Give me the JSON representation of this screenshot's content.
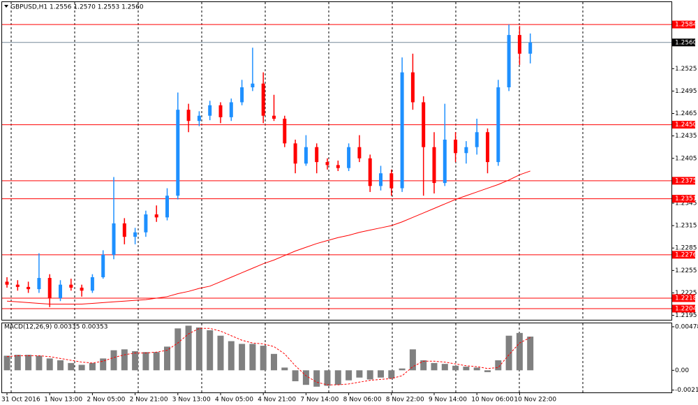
{
  "chart_data": [
    {
      "type": "candlestick",
      "title": "GBPUSD,H1  1.2556 1.2570 1.2553 1.2560",
      "categories": [
        "31 Oct 2016",
        null,
        null,
        null,
        "1 Nov 13:00",
        null,
        null,
        null,
        "2 Nov 05:00",
        null,
        null,
        null,
        "2 Nov 21:00",
        null,
        null,
        null,
        "3 Nov 13:00",
        null,
        null,
        null,
        "4 Nov 05:00",
        null,
        null,
        null,
        "4 Nov 21:00",
        null,
        null,
        null,
        "7 Nov 14:00",
        null,
        null,
        null,
        "8 Nov 06:00",
        null,
        null,
        null,
        "8 Nov 22:00",
        null,
        null,
        null,
        "9 Nov 14:00",
        null,
        null,
        null,
        "10 Nov 06:00",
        null,
        null,
        null,
        "10 Nov 22:00",
        null
      ],
      "open": [
        1.224,
        1.2236,
        1.2233,
        1.223,
        1.2245,
        1.2218,
        1.2236,
        1.2232,
        1.2228,
        1.2246,
        1.2276,
        1.2318,
        1.23,
        1.2306,
        1.233,
        1.2326,
        1.2355,
        1.247,
        1.2455,
        1.2462,
        1.2476,
        1.246,
        1.248,
        1.25,
        1.2505,
        1.2462,
        1.2458,
        1.2425,
        1.2398,
        1.242,
        1.24,
        1.2396,
        1.2392,
        1.242,
        1.2405,
        1.2368,
        1.2385,
        1.2365,
        1.252,
        1.248,
        1.242,
        1.2372,
        1.243,
        1.2412,
        1.242,
        1.244,
        1.24,
        1.25,
        1.257,
        1.2545
      ],
      "high": [
        1.2246,
        1.2242,
        1.224,
        1.2278,
        1.225,
        1.2242,
        1.2244,
        1.2236,
        1.225,
        1.2282,
        1.238,
        1.2325,
        1.2312,
        1.2335,
        1.2342,
        1.2365,
        1.2493,
        1.2478,
        1.2468,
        1.2482,
        1.248,
        1.2485,
        1.251,
        1.2553,
        1.252,
        1.249,
        1.2462,
        1.243,
        1.2436,
        1.2425,
        1.2405,
        1.2402,
        1.2425,
        1.2436,
        1.241,
        1.2395,
        1.239,
        1.254,
        1.2545,
        1.2488,
        1.244,
        1.2478,
        1.244,
        1.2428,
        1.2458,
        1.2445,
        1.251,
        1.2584,
        1.2582,
        1.2572
      ],
      "low": [
        1.2232,
        1.2228,
        1.2225,
        1.2225,
        1.2206,
        1.2214,
        1.2228,
        1.222,
        1.2225,
        1.2244,
        1.227,
        1.229,
        1.229,
        1.23,
        1.232,
        1.2322,
        1.235,
        1.244,
        1.2448,
        1.2456,
        1.2452,
        1.2455,
        1.2476,
        1.2495,
        1.2452,
        1.2455,
        1.242,
        1.2385,
        1.2395,
        1.2385,
        1.239,
        1.2388,
        1.2388,
        1.24,
        1.236,
        1.2362,
        1.2355,
        1.236,
        1.247,
        1.2355,
        1.2358,
        1.2368,
        1.24,
        1.2398,
        1.241,
        1.2385,
        1.2395,
        1.2495,
        1.253,
        1.2532
      ],
      "close": [
        1.2236,
        1.2233,
        1.223,
        1.2245,
        1.2218,
        1.2236,
        1.2232,
        1.2228,
        1.2246,
        1.2276,
        1.2318,
        1.23,
        1.2306,
        1.233,
        1.2326,
        1.2355,
        1.247,
        1.2455,
        1.2462,
        1.2476,
        1.246,
        1.248,
        1.25,
        1.2505,
        1.2462,
        1.2458,
        1.2425,
        1.2398,
        1.242,
        1.24,
        1.2396,
        1.2392,
        1.242,
        1.2405,
        1.2368,
        1.2385,
        1.2365,
        1.252,
        1.248,
        1.242,
        1.2372,
        1.243,
        1.2412,
        1.242,
        1.244,
        1.24,
        1.25,
        1.257,
        1.2545,
        1.256
      ],
      "up_color": "#1e90ff",
      "down_color": "#ff0000",
      "ma": {
        "color": "#ff0000",
        "values": [
          1.2214,
          1.2213,
          1.2212,
          1.2211,
          1.221,
          1.221,
          1.221,
          1.221,
          1.2211,
          1.2212,
          1.2213,
          1.2214,
          1.2215,
          1.2216,
          1.2218,
          1.222,
          1.2224,
          1.2227,
          1.2231,
          1.2234,
          1.224,
          1.2246,
          1.2252,
          1.2258,
          1.2264,
          1.2269,
          1.2275,
          1.2281,
          1.2286,
          1.2291,
          1.2295,
          1.2299,
          1.2302,
          1.2306,
          1.2309,
          1.2312,
          1.2315,
          1.232,
          1.2326,
          1.2332,
          1.2338,
          1.2344,
          1.235,
          1.2355,
          1.236,
          1.2365,
          1.237,
          1.2376,
          1.2383,
          1.2388
        ]
      },
      "levels": [
        1.2584,
        {
          "value": 1.245,
          "label": "1.2450"
        },
        1.2375,
        1.2351,
        1.2276,
        1.2218,
        1.2204
      ],
      "level_color": "#ff0000",
      "current": {
        "value": 1.256,
        "label": "1.2560"
      },
      "ylim": [
        1.2189,
        1.2614
      ],
      "yticks": [
        1.2195,
        1.2225,
        1.2255,
        1.2285,
        1.2315,
        1.2345,
        1.2405,
        1.2435,
        1.2465,
        1.2495,
        1.2525
      ]
    },
    {
      "type": "macd",
      "title": "MACD(12,26,9) 0.00335 0.00353",
      "values": [
        0.0016,
        0.0017,
        0.0017,
        0.0016,
        0.0013,
        0.0011,
        0.0008,
        0.0006,
        0.0008,
        0.0013,
        0.0022,
        0.0023,
        0.0021,
        0.002,
        0.002,
        0.0026,
        0.0046,
        0.0049,
        0.0047,
        0.0044,
        0.0038,
        0.0032,
        0.0029,
        0.0029,
        0.0027,
        0.0018,
        0.0003,
        -0.0012,
        -0.0016,
        -0.0018,
        -0.0017,
        -0.0016,
        -0.0011,
        -0.0008,
        -0.001,
        -0.0008,
        -0.0009,
        0.0002,
        0.0023,
        0.0011,
        0.0008,
        0.0007,
        0.0005,
        0.0004,
        0.0003,
        -0.0002,
        0.0011,
        0.0038,
        0.0041,
        0.0037
      ],
      "color": "#808080",
      "signal": {
        "color": "#ff0000",
        "values": [
          0.0015,
          0.0016,
          0.0016,
          0.0016,
          0.0015,
          0.0013,
          0.0011,
          0.0009,
          0.0008,
          0.001,
          0.0014,
          0.0017,
          0.0019,
          0.0019,
          0.002,
          0.0022,
          0.003,
          0.004,
          0.0046,
          0.0046,
          0.0043,
          0.0038,
          0.0033,
          0.003,
          0.0029,
          0.0026,
          0.0018,
          0.0005,
          -0.0006,
          -0.0013,
          -0.0016,
          -0.0016,
          -0.0015,
          -0.0013,
          -0.0011,
          -0.001,
          -0.0009,
          -0.0006,
          0.0004,
          0.001,
          0.001,
          0.0009,
          0.0007,
          0.0005,
          0.0004,
          0.0002,
          0.0003,
          0.0017,
          0.003,
          0.0036
        ]
      },
      "ylim": [
        -0.00243,
        0.00516
      ],
      "yticks": [
        0.00478,
        {
          "value": 0,
          "label": "0.00"
        },
        -0.00217
      ]
    }
  ]
}
